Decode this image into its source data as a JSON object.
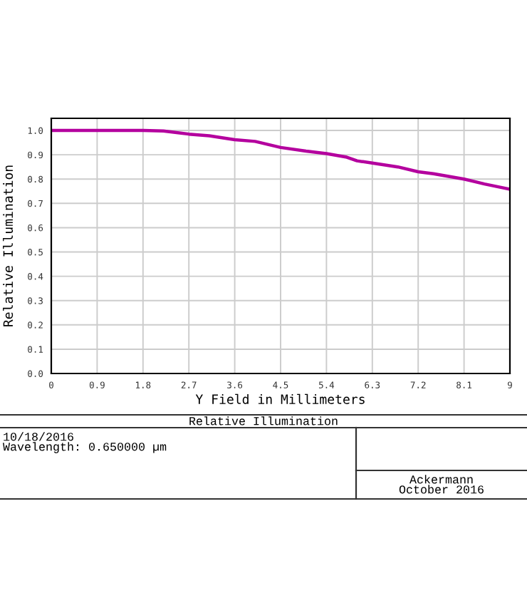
{
  "chart_data": {
    "type": "line",
    "title": "Relative Illumination",
    "xlabel": "Y Field in Millimeters",
    "ylabel": "Relative Illumination",
    "x": [
      0,
      0.9,
      1.8,
      2.2,
      2.7,
      3.1,
      3.6,
      4.0,
      4.5,
      5.0,
      5.4,
      5.8,
      6.0,
      6.3,
      6.8,
      7.2,
      7.5,
      8.1,
      8.5,
      9.0
    ],
    "series": [
      {
        "color": "#b4009e",
        "values": [
          1.0,
          1.0,
          1.0,
          0.998,
          0.985,
          0.978,
          0.962,
          0.955,
          0.93,
          0.915,
          0.905,
          0.89,
          0.875,
          0.866,
          0.85,
          0.83,
          0.822,
          0.8,
          0.78,
          0.758
        ]
      }
    ],
    "xlim": [
      0,
      9
    ],
    "ylim": [
      0,
      1.05
    ],
    "xticks": [
      0,
      0.9,
      1.8,
      2.7,
      3.6,
      4.5,
      5.4,
      6.3,
      7.2,
      8.1,
      9
    ],
    "yticks": [
      {
        "value": 0,
        "label": "0.0"
      },
      0.1,
      0.2,
      0.3,
      0.4,
      0.5,
      0.6,
      0.7,
      0.8,
      0.9,
      {
        "value": 1,
        "label": "1.0"
      }
    ],
    "grid": true,
    "marker": "none",
    "line_style": "solid",
    "annotations": [
      "10/18/2016",
      "Wavelength: 0.650000 µm",
      "Ackermann",
      "October 2016"
    ]
  }
}
